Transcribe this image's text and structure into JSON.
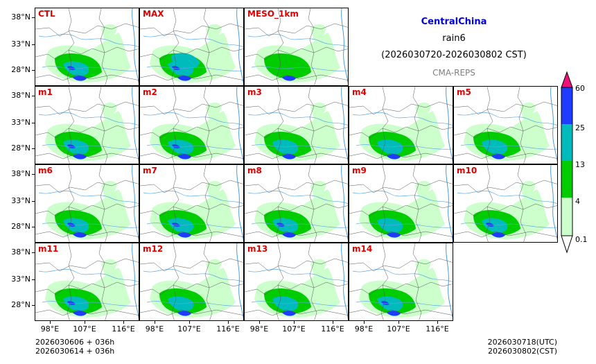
{
  "header": {
    "region": "CentralChina",
    "variable": "rain6",
    "period": "(2026030720-2026030802 CST)",
    "system": "CMA-REPS",
    "region_color": "#0000dd",
    "system_color": "#808080"
  },
  "panels": [
    {
      "label": "CTL",
      "intensity": 1.0
    },
    {
      "label": "MAX",
      "intensity": 1.35
    },
    {
      "label": "MESO_1km",
      "intensity": 0.7
    },
    {
      "label": "m1",
      "intensity": 1.0
    },
    {
      "label": "m2",
      "intensity": 1.05
    },
    {
      "label": "m3",
      "intensity": 0.9
    },
    {
      "label": "m4",
      "intensity": 0.9
    },
    {
      "label": "m5",
      "intensity": 0.85
    },
    {
      "label": "m6",
      "intensity": 1.1
    },
    {
      "label": "m7",
      "intensity": 1.0
    },
    {
      "label": "m8",
      "intensity": 1.05
    },
    {
      "label": "m9",
      "intensity": 0.95
    },
    {
      "label": "m10",
      "intensity": 1.0
    },
    {
      "label": "m11",
      "intensity": 1.0
    },
    {
      "label": "m12",
      "intensity": 0.95
    },
    {
      "label": "m13",
      "intensity": 0.95
    },
    {
      "label": "m14",
      "intensity": 1.0
    }
  ],
  "axes": {
    "lat_labels": [
      "38°N",
      "33°N",
      "28°N"
    ],
    "lon_labels": [
      "98°E",
      "107°E",
      "116°E"
    ]
  },
  "colorbar": {
    "levels": [
      "0.1",
      "4",
      "13",
      "25",
      "60"
    ],
    "colors": [
      "#ccffcc",
      "#00cc00",
      "#00bbbb",
      "#1e3cff"
    ],
    "extend_max_color": "#ee1177"
  },
  "footer": {
    "init_utc": "2026030606  +  036h",
    "init_cst": "2026030614  +  036h",
    "valid_utc": "2026030718(UTC)",
    "valid_cst": "2026030802(CST)"
  }
}
